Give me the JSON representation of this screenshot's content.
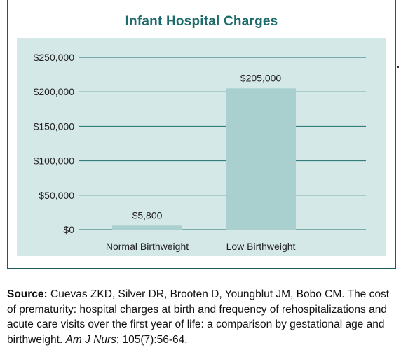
{
  "chart_data": {
    "type": "bar",
    "title": "Infant Hospital Charges",
    "categories": [
      "Normal Birthweight",
      "Low Birthweight"
    ],
    "values": [
      5800,
      205000
    ],
    "data_labels": [
      "$5,800",
      "$205,000"
    ],
    "ylim": [
      0,
      250000
    ],
    "yticks": [
      0,
      50000,
      100000,
      150000,
      200000,
      250000
    ],
    "ytick_labels": [
      "$0",
      "$50,000",
      "$100,000",
      "$150,000",
      "$200,000",
      "$250,000"
    ],
    "grid": true,
    "xlabel": "",
    "ylabel": "",
    "colors": {
      "bar": "#a9cfcf",
      "plot_bg": "#d5e8e8",
      "grid": "#1f6f6f",
      "title": "#1d6b6b"
    }
  },
  "source": {
    "label": "Source:",
    "text": " Cuevas ZKD, Silver DR, Brooten D, Youngblut JM, Bobo CM. The cost of prematurity: hospital charges at birth and frequency of rehospitalizations and acute care visits over the first year of life: a comparison by gestational age and birthweight. ",
    "journal": "Am J Nurs",
    "citation": "; 105(7):56-64."
  }
}
